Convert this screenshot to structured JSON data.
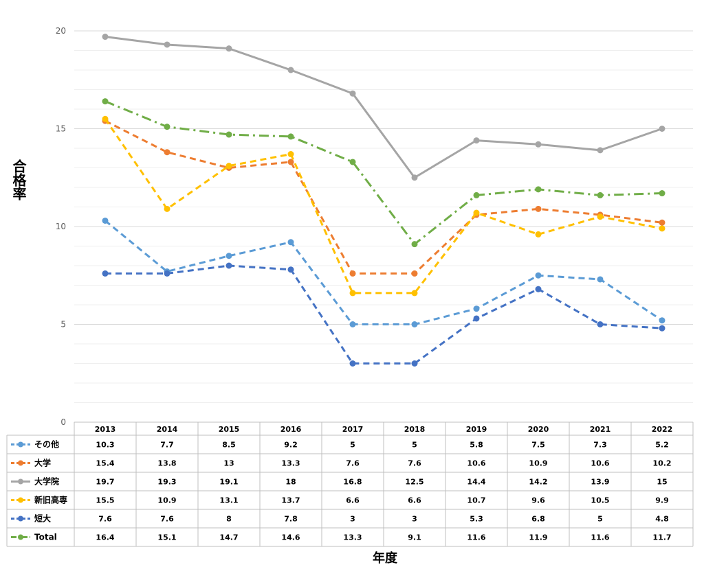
{
  "chart_data": {
    "type": "line",
    "ylabel": "合格率",
    "xlabel": "年度",
    "ylim": [
      0,
      20
    ],
    "yticks": [
      0,
      5,
      10,
      15,
      20
    ],
    "grid": true,
    "legend": "data-table",
    "categories": [
      "2013",
      "2014",
      "2015",
      "2016",
      "2017",
      "2018",
      "2019",
      "2020",
      "2021",
      "2022"
    ],
    "series": [
      {
        "name": "その他",
        "color": "#5B9BD5",
        "dash": "dashed",
        "values": [
          10.3,
          7.7,
          8.5,
          9.2,
          5,
          5,
          5.8,
          7.5,
          7.3,
          5.2
        ]
      },
      {
        "name": "大学",
        "color": "#ED7D31",
        "dash": "dashed",
        "values": [
          15.4,
          13.8,
          13,
          13.3,
          7.6,
          7.6,
          10.6,
          10.9,
          10.6,
          10.2
        ]
      },
      {
        "name": "大学院",
        "color": "#A5A5A5",
        "dash": "solid",
        "values": [
          19.7,
          19.3,
          19.1,
          18,
          16.8,
          12.5,
          14.4,
          14.2,
          13.9,
          15
        ]
      },
      {
        "name": "新旧高専",
        "color": "#FFC000",
        "dash": "dashed",
        "values": [
          15.5,
          10.9,
          13.1,
          13.7,
          6.6,
          6.6,
          10.7,
          9.6,
          10.5,
          9.9
        ]
      },
      {
        "name": "短大",
        "color": "#4472C4",
        "dash": "dashed",
        "values": [
          7.6,
          7.6,
          8,
          7.8,
          3,
          3,
          5.3,
          6.8,
          5,
          4.8
        ]
      },
      {
        "name": "Total",
        "color": "#70AD47",
        "dash": "dashdot",
        "values": [
          16.4,
          15.1,
          14.7,
          14.6,
          13.3,
          9.1,
          11.6,
          11.9,
          11.6,
          11.7
        ]
      }
    ]
  }
}
